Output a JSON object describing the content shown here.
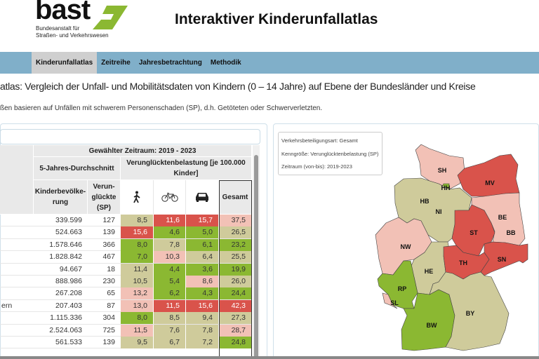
{
  "logo": {
    "word": "bast",
    "line1": "Bundesanstalt für",
    "line2": "Straßen- und Verkehrswesen"
  },
  "app_title": "Interaktiver Kinderunfallatlas",
  "nav": [
    {
      "label": "Kinderunfallatlas",
      "active": true
    },
    {
      "label": "Zeitreihe"
    },
    {
      "label": "Jahresbetrachtung"
    },
    {
      "label": "Methodik"
    }
  ],
  "page_title": "atlas: Vergleich der Unfall- und Mobilitätsdaten von Kindern (0 – 14 Jahre) auf Ebene der Bundesländer und Kreise",
  "page_subtitle": "ßen basieren auf Unfällen mit schwerem Personenschaden (SP), d.h. Getöteten oder Schwerverletzten.",
  "table": {
    "header_period": "Gewählter Zeitraum: 2019 - 2023",
    "header_avg": "5-Jahres-Durchschnitt",
    "header_burden": "Verunglücktenbelastung [je 100.000 Kinder]",
    "col_population": "Kinderbevölke-rung",
    "col_casualties": "Verun-glückte (SP)",
    "col_pedestrian_icon": "pedestrian-icon",
    "col_bicycle_icon": "bicycle-icon",
    "col_car_icon": "car-icon",
    "col_total": "Gesamt",
    "rows": [
      {
        "name": "",
        "pop": "339.599",
        "sp": "127",
        "ped": "8,5",
        "bike": "11,6",
        "car": "15,7",
        "total": "37,5",
        "cls": [
          "k",
          "r",
          "r",
          "p"
        ]
      },
      {
        "name": "",
        "pop": "524.663",
        "sp": "139",
        "ped": "15,6",
        "bike": "4,6",
        "car": "5,0",
        "total": "26,5",
        "cls": [
          "r",
          "g",
          "g",
          "k"
        ]
      },
      {
        "name": "",
        "pop": "1.578.646",
        "sp": "366",
        "ped": "8,0",
        "bike": "7,8",
        "car": "6,1",
        "total": "23,2",
        "cls": [
          "g",
          "k",
          "g",
          "g"
        ]
      },
      {
        "name": "",
        "pop": "1.828.842",
        "sp": "467",
        "ped": "7,0",
        "bike": "10,3",
        "car": "6,4",
        "total": "25,5",
        "cls": [
          "g",
          "p",
          "k",
          "k"
        ]
      },
      {
        "name": "",
        "pop": "94.667",
        "sp": "18",
        "ped": "11,4",
        "bike": "4,4",
        "car": "3,6",
        "total": "19,9",
        "cls": [
          "k",
          "g",
          "g",
          "g"
        ]
      },
      {
        "name": "",
        "pop": "888.986",
        "sp": "230",
        "ped": "10,5",
        "bike": "5,4",
        "car": "8,6",
        "total": "26,0",
        "cls": [
          "k",
          "g",
          "p",
          "k"
        ]
      },
      {
        "name": "",
        "pop": "267.208",
        "sp": "65",
        "ped": "13,2",
        "bike": "6,2",
        "car": "4,3",
        "total": "24,4",
        "cls": [
          "p",
          "g",
          "g",
          "g"
        ]
      },
      {
        "name": "ern",
        "pop": "207.403",
        "sp": "87",
        "ped": "13,0",
        "bike": "11,5",
        "car": "15,6",
        "total": "42,3",
        "cls": [
          "p",
          "r",
          "r",
          "r"
        ]
      },
      {
        "name": "",
        "pop": "1.115.336",
        "sp": "304",
        "ped": "8,0",
        "bike": "8,5",
        "car": "9,4",
        "total": "27,3",
        "cls": [
          "g",
          "k",
          "k",
          "k"
        ]
      },
      {
        "name": "",
        "pop": "2.524.063",
        "sp": "725",
        "ped": "11,5",
        "bike": "7,6",
        "car": "7,8",
        "total": "28,7",
        "cls": [
          "p",
          "k",
          "k",
          "p"
        ]
      },
      {
        "name": "",
        "pop": "561.533",
        "sp": "139",
        "ped": "9,5",
        "bike": "6,7",
        "car": "7,2",
        "total": "24,8",
        "cls": [
          "k",
          "k",
          "k",
          "g"
        ]
      }
    ]
  },
  "colors": {
    "r": "#d9534b",
    "p": "#f2c1b6",
    "k": "#cfcb9b",
    "g": "#8bb832",
    "nav": "#80afc9",
    "logo_green": "#8bb832"
  },
  "map_info": {
    "line1": "Verkehrsbeteiligungsart: Gesamt",
    "line2": "Kenngröße: Verunglücktenbelastung (SP)",
    "line3": "Zeitraum (von-bis): 2019-2023"
  },
  "map_states": [
    {
      "code": "SH",
      "cls": "p"
    },
    {
      "code": "MV",
      "cls": "r"
    },
    {
      "code": "HH",
      "cls": "g"
    },
    {
      "code": "HB",
      "cls": "g"
    },
    {
      "code": "NI",
      "cls": "k"
    },
    {
      "code": "BE",
      "cls": "k"
    },
    {
      "code": "BB",
      "cls": "p"
    },
    {
      "code": "ST",
      "cls": "r"
    },
    {
      "code": "NW",
      "cls": "p"
    },
    {
      "code": "HE",
      "cls": "k"
    },
    {
      "code": "TH",
      "cls": "r"
    },
    {
      "code": "SN",
      "cls": "r"
    },
    {
      "code": "RP",
      "cls": "g"
    },
    {
      "code": "SL",
      "cls": "p"
    },
    {
      "code": "BW",
      "cls": "g"
    },
    {
      "code": "BY",
      "cls": "k"
    }
  ]
}
